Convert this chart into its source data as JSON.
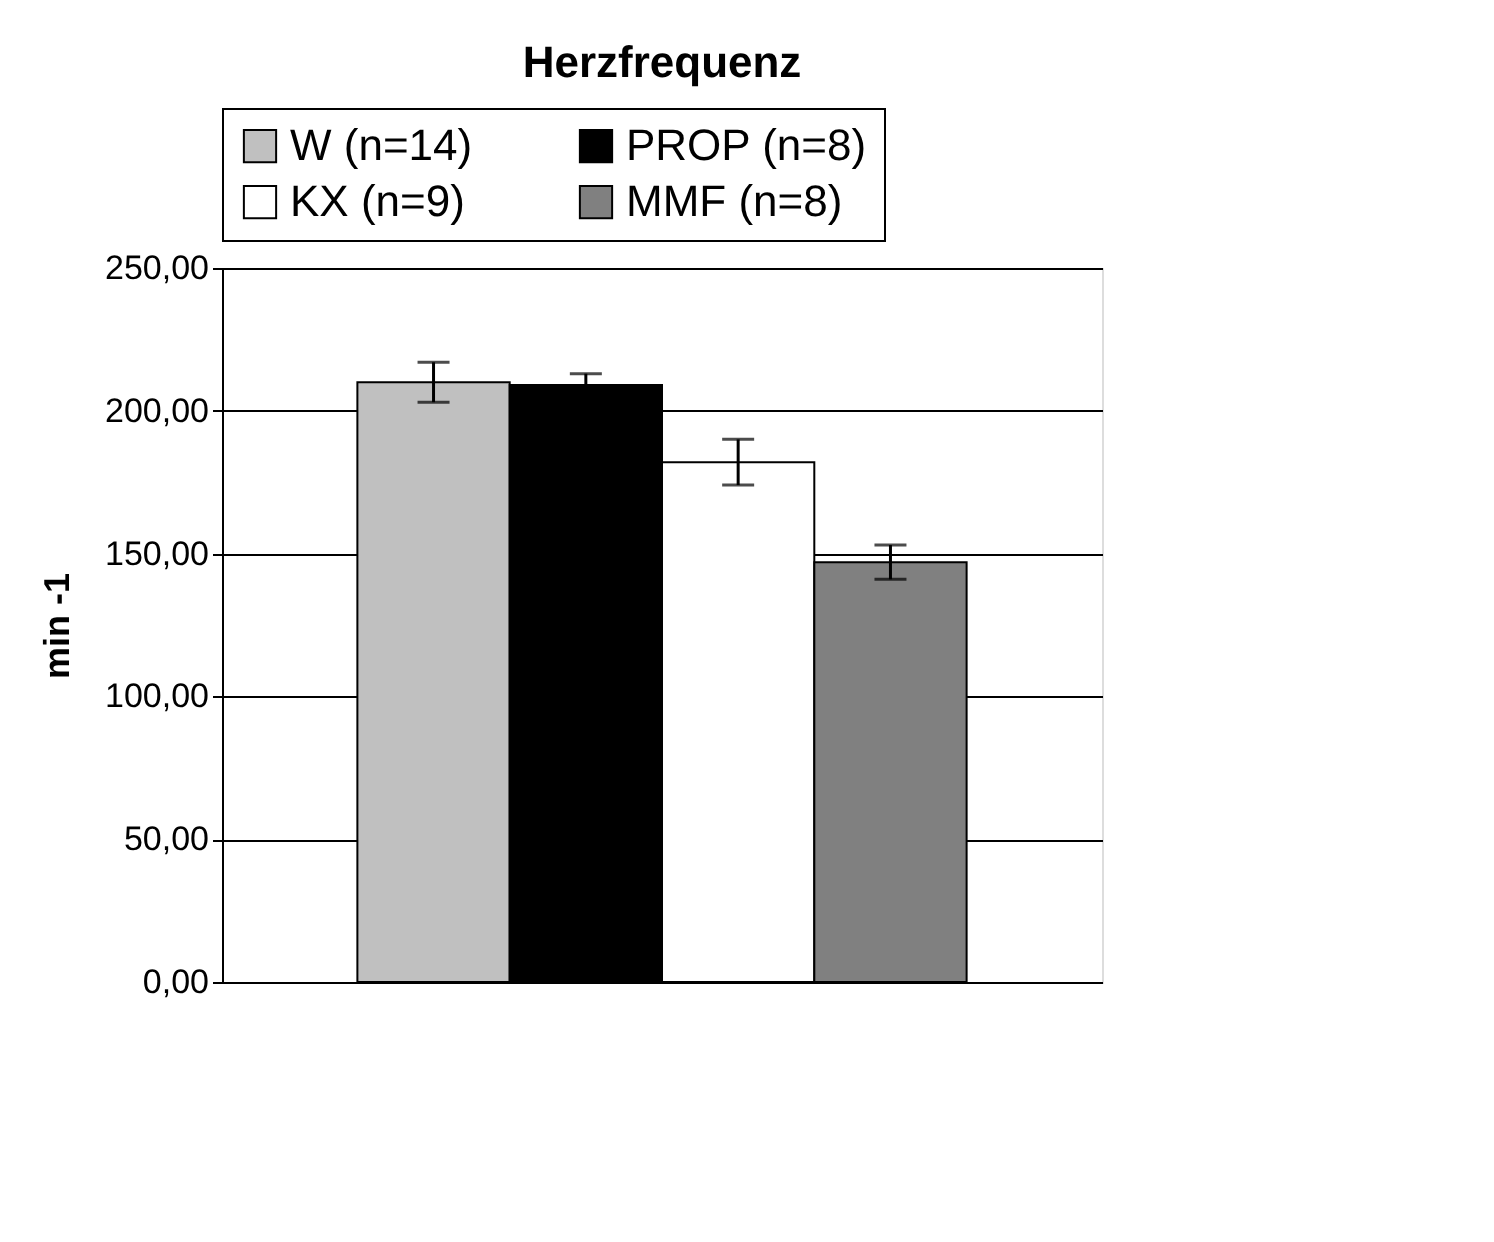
{
  "chart_data": {
    "type": "bar",
    "title": "Herzfrequenz",
    "ylabel": "min -1",
    "categories": [
      null
    ],
    "series": [
      {
        "name": "W (n=14)",
        "color": "#c0c0c0",
        "values": [
          210
        ],
        "errors": [
          7
        ]
      },
      {
        "name": "PROP (n=8)",
        "color": "#000000",
        "values": [
          209
        ],
        "errors": [
          4
        ]
      },
      {
        "name": "KX (n=9)",
        "color": "#ffffff",
        "values": [
          182
        ],
        "errors": [
          8
        ]
      },
      {
        "name": "MMF (n=8)",
        "color": "#808080",
        "values": [
          147
        ],
        "errors": [
          6
        ]
      }
    ],
    "ylim": [
      0,
      250
    ],
    "yticks": [
      {
        "value": 0,
        "label": "0,00"
      },
      {
        "value": 50,
        "label": "50,00"
      },
      {
        "value": 100,
        "label": "100,00"
      },
      {
        "value": 150,
        "label": "150,00"
      },
      {
        "value": 200,
        "label": "200,00"
      },
      {
        "value": 250,
        "label": "250,00"
      }
    ],
    "grid": "y",
    "legend": "top"
  }
}
